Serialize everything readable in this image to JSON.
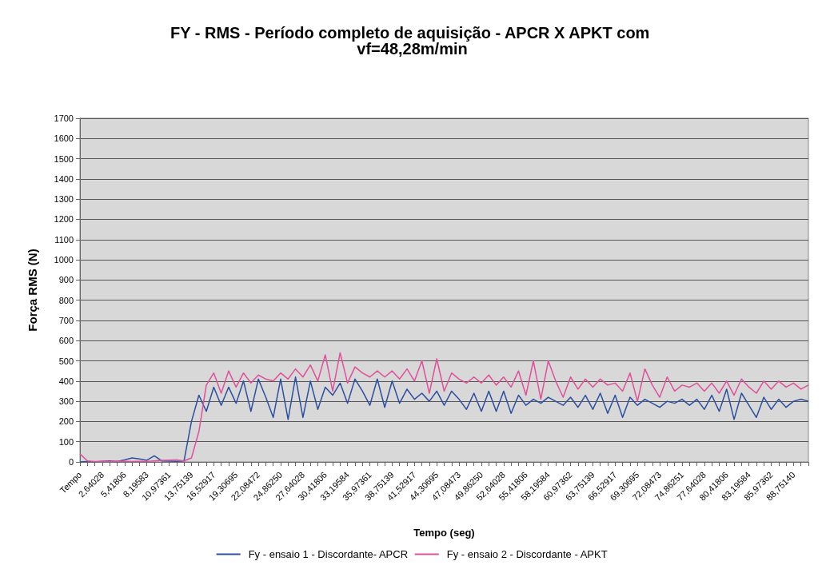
{
  "chart_data": {
    "type": "line",
    "title": "FY - RMS - Período completo de aquisição - APCR X APKT com vf=48,28m/min",
    "xlabel": "Tempo (seg)",
    "ylabel": "Força RMS (N)",
    "categories": [
      "Tempo",
      null,
      null,
      "2,64028",
      null,
      null,
      "5,41806",
      null,
      null,
      "8,19583",
      null,
      null,
      "10,97361",
      null,
      null,
      "13,75139",
      null,
      null,
      "16,52917",
      null,
      null,
      "19,30695",
      null,
      null,
      "22,08472",
      null,
      null,
      "24,86250",
      null,
      null,
      "27,64028",
      null,
      null,
      "30,41806",
      null,
      null,
      "33,19584",
      null,
      null,
      "35,97361",
      null,
      null,
      "38,75139",
      null,
      null,
      "41,52917",
      null,
      null,
      "44,30695",
      null,
      null,
      "47,08473",
      null,
      null,
      "49,86250",
      null,
      null,
      "52,64028",
      null,
      null,
      "55,41806",
      null,
      null,
      "58,19584",
      null,
      null,
      "60,97362",
      null,
      null,
      "63,75139",
      null,
      null,
      "66,52917",
      null,
      null,
      "69,30695",
      null,
      null,
      "72,08473",
      null,
      null,
      "74,86251",
      null,
      null,
      "77,64028",
      null,
      null,
      "80,41806",
      null,
      null,
      "83,19584",
      null,
      null,
      "85,97362",
      null,
      null,
      "88,75140",
      null,
      null
    ],
    "series": [
      {
        "name": "Fy - ensaio 1 - Discordante- APCR",
        "color": "#2b4ea0",
        "values": [
          0,
          2,
          0,
          3,
          5,
          2,
          10,
          20,
          15,
          8,
          30,
          5,
          4,
          3,
          5,
          200,
          330,
          250,
          370,
          280,
          370,
          290,
          400,
          250,
          410,
          320,
          220,
          410,
          210,
          420,
          220,
          400,
          260,
          370,
          330,
          390,
          290,
          410,
          350,
          280,
          410,
          270,
          400,
          290,
          360,
          310,
          340,
          300,
          350,
          280,
          350,
          310,
          260,
          340,
          250,
          350,
          250,
          350,
          240,
          330,
          280,
          310,
          290,
          320,
          300,
          280,
          320,
          270,
          330,
          260,
          340,
          240,
          330,
          220,
          320,
          280,
          310,
          290,
          270,
          300,
          290,
          310,
          280,
          310,
          260,
          330,
          250,
          360,
          210,
          340,
          280,
          220,
          320,
          260,
          310,
          270,
          300,
          310,
          300
        ]
      },
      {
        "name": "Fy - ensaio 2 - Discordante - APKT",
        "color": "#e0509a",
        "values": [
          40,
          5,
          2,
          3,
          2,
          4,
          3,
          2,
          3,
          2,
          5,
          8,
          9,
          10,
          5,
          20,
          150,
          380,
          440,
          340,
          450,
          370,
          440,
          390,
          430,
          410,
          400,
          440,
          410,
          460,
          420,
          480,
          400,
          530,
          350,
          540,
          390,
          470,
          440,
          420,
          450,
          420,
          450,
          410,
          460,
          400,
          500,
          340,
          510,
          350,
          440,
          410,
          390,
          420,
          390,
          430,
          380,
          420,
          370,
          450,
          330,
          500,
          310,
          500,
          400,
          320,
          420,
          360,
          410,
          370,
          410,
          380,
          390,
          350,
          440,
          300,
          460,
          380,
          320,
          420,
          350,
          380,
          370,
          390,
          350,
          390,
          340,
          400,
          330,
          410,
          370,
          340,
          400,
          360,
          400,
          370,
          390,
          360,
          380
        ]
      }
    ],
    "ylim": [
      0,
      1700
    ],
    "yticks": [
      0,
      100,
      200,
      300,
      400,
      500,
      600,
      700,
      800,
      900,
      1000,
      1100,
      1200,
      1300,
      1400,
      1500,
      1600,
      1700
    ],
    "grid": "y",
    "legend": "bottom",
    "marker": "none",
    "line_style": "solid"
  }
}
